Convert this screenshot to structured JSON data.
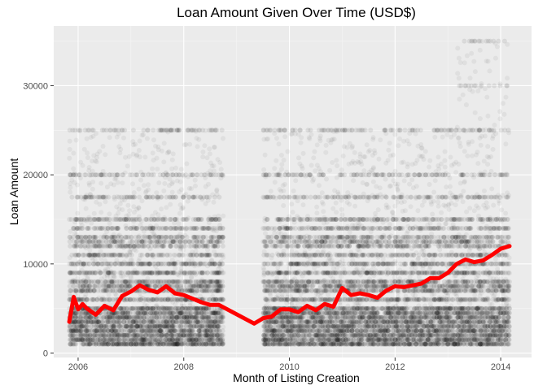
{
  "chart_data": {
    "type": "scatter",
    "title": "Loan Amount Given Over Time (USD$)",
    "xlabel": "Month of Listing Creation",
    "ylabel": "Loan Amount",
    "x_ticks": [
      "2006",
      "2008",
      "2010",
      "2012",
      "2014"
    ],
    "y_ticks": [
      "0",
      "10000",
      "20000",
      "30000"
    ],
    "xlim": [
      "2005-07-15",
      "2014-08-01"
    ],
    "ylim": [
      -500,
      36700
    ],
    "grid": true,
    "legend": "none",
    "colors": {
      "panel": "#ebebeb",
      "grid_major": "#ffffff",
      "grid_minor": "#f5f5f5",
      "points": "#000000",
      "trend": "#ff0000"
    },
    "scatter_amount_levels": [
      1000,
      1500,
      2000,
      2500,
      3000,
      3500,
      4000,
      4500,
      5000,
      6000,
      7000,
      7500,
      8000,
      9000,
      10000,
      11000,
      12000,
      12500,
      13000,
      14000,
      15000,
      17500,
      20000,
      25000,
      30000,
      35000
    ],
    "series": [
      {
        "type": "line",
        "x": [
          "2005-11",
          "2005-12",
          "2006-01",
          "2006-02",
          "2006-03",
          "2006-05",
          "2006-07",
          "2006-09",
          "2006-11",
          "2007-01",
          "2007-03",
          "2007-05",
          "2007-07",
          "2007-09",
          "2007-11",
          "2008-01",
          "2008-03",
          "2008-05",
          "2008-07",
          "2008-09",
          "2009-05",
          "2009-07",
          "2009-09",
          "2009-11",
          "2010-01",
          "2010-03",
          "2010-05",
          "2010-07",
          "2010-09",
          "2010-11",
          "2011-01",
          "2011-03",
          "2011-05",
          "2011-07",
          "2011-09",
          "2011-11",
          "2012-01",
          "2012-03",
          "2012-05",
          "2012-07",
          "2012-09",
          "2012-11",
          "2013-01",
          "2013-03",
          "2013-05",
          "2013-07",
          "2013-09",
          "2013-11",
          "2014-01",
          "2014-03"
        ],
        "y": [
          3500,
          6300,
          4900,
          5500,
          5000,
          4300,
          5300,
          4800,
          6400,
          6900,
          7600,
          7100,
          6800,
          7500,
          6700,
          6500,
          6100,
          5700,
          5400,
          5400,
          3300,
          3900,
          4100,
          4900,
          4900,
          4600,
          5300,
          4800,
          5500,
          5200,
          7300,
          6500,
          6700,
          6500,
          6200,
          7000,
          7500,
          7400,
          7600,
          7800,
          8400,
          8400,
          9000,
          10000,
          10500,
          10200,
          10400,
          11000,
          11700,
          12000
        ]
      }
    ]
  }
}
